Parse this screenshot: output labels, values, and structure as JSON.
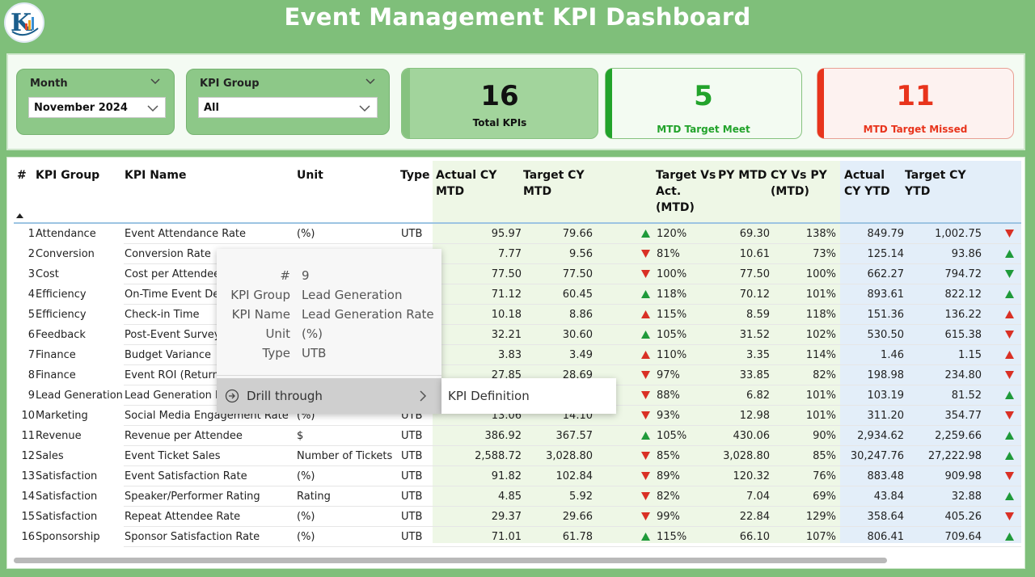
{
  "title": "Event Management KPI Dashboard",
  "colors": {
    "up": "#1f9a3a",
    "down": "#d93025",
    "meet": "#22a32b",
    "missed": "#e8341c"
  },
  "filters": {
    "month": {
      "label": "Month",
      "value": "November 2024"
    },
    "kpi_group": {
      "label": "KPI Group",
      "value": "All"
    }
  },
  "cards": {
    "total": {
      "value": "16",
      "label": "Total KPIs"
    },
    "meet": {
      "value": "5",
      "label": "MTD Target Meet"
    },
    "missed": {
      "value": "11",
      "label": "MTD Target Missed"
    }
  },
  "table": {
    "headers": {
      "num": "#",
      "group": "KPI Group",
      "name": "KPI Name",
      "unit": "Unit",
      "type": "Type",
      "actual_mtd_1": "Actual CY",
      "actual_mtd_2": "MTD",
      "target_mtd_1": "Target CY",
      "target_mtd_2": "MTD",
      "tva_1": "Target Vs",
      "tva_2": "Act.",
      "tva_3": "(MTD)",
      "py_mtd": "PY MTD",
      "cyvspy_1": "CY Vs PY",
      "cyvspy_2": "(MTD)",
      "actual_ytd_1": "Actual",
      "actual_ytd_2": "CY YTD",
      "target_ytd_1": "Target CY",
      "target_ytd_2": "YTD"
    },
    "rows": [
      {
        "num": "1",
        "group": "Attendance",
        "name": "Event Attendance Rate",
        "unit": "(%)",
        "type": "UTB",
        "act_mtd": "95.97",
        "tgt_mtd": "79.66",
        "mtd_icon": "up",
        "tva": "120%",
        "py_mtd": "69.30",
        "cyvspy": "138%",
        "act_ytd": "849.79",
        "tgt_ytd": "1,002.75",
        "ytd_icon": "down"
      },
      {
        "num": "2",
        "group": "Conversion",
        "name": "Conversion Rate",
        "unit": "",
        "type": "",
        "act_mtd": "7.77",
        "tgt_mtd": "9.56",
        "mtd_icon": "down",
        "tva": "81%",
        "py_mtd": "10.61",
        "cyvspy": "73%",
        "act_ytd": "125.14",
        "tgt_ytd": "93.86",
        "ytd_icon": "up"
      },
      {
        "num": "3",
        "group": "Cost",
        "name": "Cost per Attendee",
        "unit": "",
        "type": "",
        "act_mtd": "77.50",
        "tgt_mtd": "77.50",
        "mtd_icon": "down",
        "tva": "100%",
        "py_mtd": "77.50",
        "cyvspy": "100%",
        "act_ytd": "662.27",
        "tgt_ytd": "794.72",
        "ytd_icon": "down-green"
      },
      {
        "num": "4",
        "group": "Efficiency",
        "name": "On-Time Event Deli",
        "unit": "",
        "type": "",
        "act_mtd": "71.12",
        "tgt_mtd": "60.45",
        "mtd_icon": "up",
        "tva": "118%",
        "py_mtd": "70.12",
        "cyvspy": "101%",
        "act_ytd": "893.61",
        "tgt_ytd": "822.12",
        "ytd_icon": "up"
      },
      {
        "num": "5",
        "group": "Efficiency",
        "name": "Check-in Time",
        "unit": "",
        "type": "",
        "act_mtd": "10.18",
        "tgt_mtd": "8.86",
        "mtd_icon": "up-red",
        "tva": "115%",
        "py_mtd": "8.59",
        "cyvspy": "118%",
        "act_ytd": "151.36",
        "tgt_ytd": "136.22",
        "ytd_icon": "up-red"
      },
      {
        "num": "6",
        "group": "Feedback",
        "name": "Post-Event Survey R",
        "unit": "",
        "type": "",
        "act_mtd": "32.21",
        "tgt_mtd": "30.60",
        "mtd_icon": "up",
        "tva": "105%",
        "py_mtd": "31.52",
        "cyvspy": "102%",
        "act_ytd": "530.50",
        "tgt_ytd": "615.38",
        "ytd_icon": "down"
      },
      {
        "num": "7",
        "group": "Finance",
        "name": "Budget Variance",
        "unit": "",
        "type": "",
        "act_mtd": "3.83",
        "tgt_mtd": "3.49",
        "mtd_icon": "up-red",
        "tva": "110%",
        "py_mtd": "3.35",
        "cyvspy": "114%",
        "act_ytd": "1.46",
        "tgt_ytd": "1.15",
        "ytd_icon": "up-red"
      },
      {
        "num": "8",
        "group": "Finance",
        "name": "Event ROI (Return o",
        "unit": "",
        "type": "",
        "act_mtd": "27.85",
        "tgt_mtd": "28.69",
        "mtd_icon": "down",
        "tva": "97%",
        "py_mtd": "33.85",
        "cyvspy": "82%",
        "act_ytd": "198.98",
        "tgt_ytd": "234.80",
        "ytd_icon": "down"
      },
      {
        "num": "9",
        "group": "Lead Generation",
        "name": "Lead Generation R",
        "unit": "",
        "type": "",
        "act_mtd": "",
        "tgt_mtd": "",
        "mtd_icon": "down",
        "tva": "88%",
        "py_mtd": "6.82",
        "cyvspy": "101%",
        "act_ytd": "103.19",
        "tgt_ytd": "81.52",
        "ytd_icon": "up"
      },
      {
        "num": "10",
        "group": "Marketing",
        "name": "Social Media Engagement Rate",
        "unit": "(%)",
        "type": "UTB",
        "act_mtd": "13.06",
        "tgt_mtd": "14.10",
        "mtd_icon": "down",
        "tva": "93%",
        "py_mtd": "12.98",
        "cyvspy": "101%",
        "act_ytd": "311.20",
        "tgt_ytd": "354.77",
        "ytd_icon": "down"
      },
      {
        "num": "11",
        "group": "Revenue",
        "name": "Revenue per Attendee",
        "unit": "$",
        "type": "UTB",
        "act_mtd": "386.92",
        "tgt_mtd": "367.57",
        "mtd_icon": "up",
        "tva": "105%",
        "py_mtd": "430.06",
        "cyvspy": "90%",
        "act_ytd": "2,934.62",
        "tgt_ytd": "2,259.66",
        "ytd_icon": "up"
      },
      {
        "num": "12",
        "group": "Sales",
        "name": "Event Ticket Sales",
        "unit": "Number of Tickets",
        "type": "UTB",
        "act_mtd": "2,588.72",
        "tgt_mtd": "3,028.80",
        "mtd_icon": "down",
        "tva": "85%",
        "py_mtd": "3,028.80",
        "cyvspy": "85%",
        "act_ytd": "30,247.76",
        "tgt_ytd": "27,222.98",
        "ytd_icon": "up"
      },
      {
        "num": "13",
        "group": "Satisfaction",
        "name": "Event Satisfaction Rate",
        "unit": "(%)",
        "type": "UTB",
        "act_mtd": "91.82",
        "tgt_mtd": "102.84",
        "mtd_icon": "down",
        "tva": "89%",
        "py_mtd": "120.32",
        "cyvspy": "76%",
        "act_ytd": "883.48",
        "tgt_ytd": "909.98",
        "ytd_icon": "down"
      },
      {
        "num": "14",
        "group": "Satisfaction",
        "name": "Speaker/Performer Rating",
        "unit": "Rating",
        "type": "UTB",
        "act_mtd": "4.85",
        "tgt_mtd": "5.92",
        "mtd_icon": "down",
        "tva": "82%",
        "py_mtd": "7.04",
        "cyvspy": "69%",
        "act_ytd": "43.84",
        "tgt_ytd": "32.88",
        "ytd_icon": "up"
      },
      {
        "num": "15",
        "group": "Satisfaction",
        "name": "Repeat Attendee Rate",
        "unit": "(%)",
        "type": "UTB",
        "act_mtd": "29.37",
        "tgt_mtd": "29.66",
        "mtd_icon": "down",
        "tva": "99%",
        "py_mtd": "22.84",
        "cyvspy": "129%",
        "act_ytd": "358.64",
        "tgt_ytd": "405.26",
        "ytd_icon": "down"
      },
      {
        "num": "16",
        "group": "Sponsorship",
        "name": "Sponsor Satisfaction Rate",
        "unit": "(%)",
        "type": "UTB",
        "act_mtd": "71.01",
        "tgt_mtd": "61.78",
        "mtd_icon": "up",
        "tva": "115%",
        "py_mtd": "66.10",
        "cyvspy": "107%",
        "act_ytd": "806.41",
        "tgt_ytd": "709.64",
        "ytd_icon": "up"
      }
    ]
  },
  "tooltip": {
    "fields": [
      {
        "key": "#",
        "value": "9"
      },
      {
        "key": "KPI Group",
        "value": "Lead Generation"
      },
      {
        "key": "KPI Name",
        "value": "Lead Generation Rate"
      },
      {
        "key": "Unit",
        "value": "(%)"
      },
      {
        "key": "Type",
        "value": "UTB"
      }
    ],
    "drill_label": "Drill through",
    "submenu_item": "KPI Definition"
  }
}
